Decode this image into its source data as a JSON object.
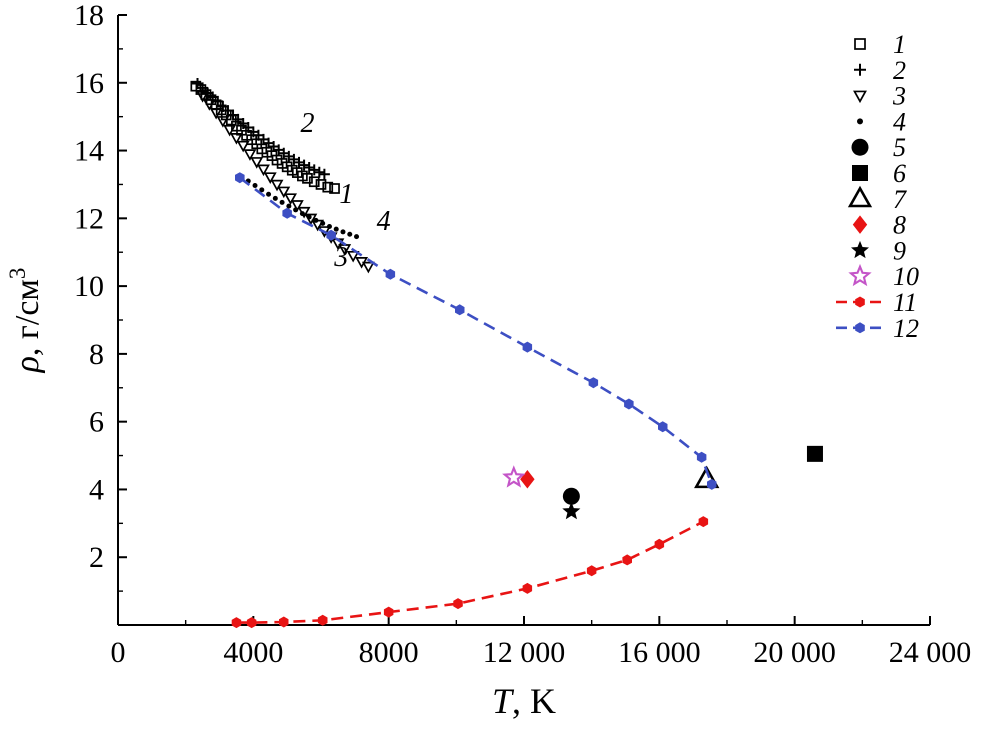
{
  "chart_data": {
    "type": "scatter",
    "title": "",
    "xlabel": "T, K",
    "ylabel": "ρ, г/см³",
    "xlabel_parts": {
      "sym": "T",
      "rest": ", K"
    },
    "ylabel_parts": {
      "sym": "ρ",
      "rest": ", г/см",
      "sup": "3"
    },
    "xlim": [
      0,
      24000
    ],
    "ylim": [
      0,
      18
    ],
    "xticks": [
      0,
      4000,
      8000,
      12000,
      16000,
      20000,
      24000
    ],
    "xtick_labels": [
      "0",
      "4000",
      "8000",
      "12 000",
      "16 000",
      "20 000",
      "24 000"
    ],
    "xminor_step": 2000,
    "yticks": [
      2,
      4,
      6,
      8,
      10,
      12,
      14,
      16,
      18
    ],
    "ytick_labels": [
      "2",
      "4",
      "6",
      "8",
      "10",
      "12",
      "14",
      "16",
      "18"
    ],
    "yminor_step": 1,
    "grid": false,
    "legend_position": "top-right",
    "colors": {
      "black": "#000000",
      "red": "#e81414",
      "blue": "#3d4fc3",
      "magenta": "#c455c8"
    },
    "series": [
      {
        "id": "1",
        "marker": "square-open",
        "color": "#000000",
        "size": 9,
        "points": [
          [
            2300,
            15.9
          ],
          [
            2450,
            15.8
          ],
          [
            2600,
            15.65
          ],
          [
            2750,
            15.5
          ],
          [
            2900,
            15.35
          ],
          [
            3050,
            15.2
          ],
          [
            3200,
            15.05
          ],
          [
            3350,
            14.9
          ],
          [
            3500,
            14.72
          ],
          [
            3650,
            14.6
          ],
          [
            3800,
            14.45
          ],
          [
            3950,
            14.32
          ],
          [
            4100,
            14.2
          ],
          [
            4250,
            14.05
          ],
          [
            4400,
            13.95
          ],
          [
            4550,
            13.85
          ],
          [
            4700,
            13.72
          ],
          [
            4850,
            13.62
          ],
          [
            5000,
            13.52
          ],
          [
            5150,
            13.42
          ],
          [
            5300,
            13.35
          ],
          [
            5450,
            13.25
          ],
          [
            5600,
            13.18
          ],
          [
            5800,
            13.08
          ],
          [
            6000,
            13.0
          ],
          [
            6200,
            12.92
          ],
          [
            6400,
            12.88
          ]
        ]
      },
      {
        "id": "2",
        "marker": "plus",
        "color": "#000000",
        "size": 11,
        "points": [
          [
            2350,
            15.98
          ],
          [
            2500,
            15.85
          ],
          [
            2650,
            15.7
          ],
          [
            2800,
            15.58
          ],
          [
            2950,
            15.45
          ],
          [
            3100,
            15.3
          ],
          [
            3250,
            15.18
          ],
          [
            3400,
            15.05
          ],
          [
            3550,
            14.92
          ],
          [
            3700,
            14.8
          ],
          [
            3850,
            14.68
          ],
          [
            4000,
            14.55
          ],
          [
            4150,
            14.45
          ],
          [
            4300,
            14.33
          ],
          [
            4450,
            14.22
          ],
          [
            4600,
            14.12
          ],
          [
            4750,
            14.02
          ],
          [
            4900,
            13.92
          ],
          [
            5050,
            13.83
          ],
          [
            5200,
            13.74
          ],
          [
            5350,
            13.65
          ],
          [
            5500,
            13.57
          ],
          [
            5650,
            13.5
          ],
          [
            5800,
            13.43
          ],
          [
            5950,
            13.36
          ],
          [
            6100,
            13.3
          ]
        ]
      },
      {
        "id": "3",
        "marker": "triangle-down-open",
        "color": "#000000",
        "size": 10,
        "points": [
          [
            2500,
            15.62
          ],
          [
            2700,
            15.38
          ],
          [
            2900,
            15.12
          ],
          [
            3100,
            14.88
          ],
          [
            3300,
            14.62
          ],
          [
            3500,
            14.38
          ],
          [
            3700,
            14.15
          ],
          [
            3900,
            13.9
          ],
          [
            4100,
            13.67
          ],
          [
            4300,
            13.45
          ],
          [
            4500,
            13.22
          ],
          [
            4700,
            13.0
          ],
          [
            4900,
            12.8
          ],
          [
            5100,
            12.6
          ],
          [
            5300,
            12.4
          ],
          [
            5500,
            12.2
          ],
          [
            5700,
            12.0
          ],
          [
            5900,
            11.82
          ],
          [
            6100,
            11.63
          ],
          [
            6300,
            11.45
          ],
          [
            6500,
            11.27
          ],
          [
            6700,
            11.1
          ],
          [
            6950,
            10.9
          ],
          [
            7200,
            10.72
          ],
          [
            7400,
            10.58
          ]
        ]
      },
      {
        "id": "4",
        "marker": "dot",
        "color": "#000000",
        "size": 5,
        "points": [
          [
            3850,
            13.1
          ],
          [
            4050,
            12.97
          ],
          [
            4250,
            12.84
          ],
          [
            4450,
            12.71
          ],
          [
            4650,
            12.59
          ],
          [
            4850,
            12.47
          ],
          [
            5050,
            12.36
          ],
          [
            5250,
            12.25
          ],
          [
            5450,
            12.14
          ],
          [
            5650,
            12.04
          ],
          [
            5850,
            11.94
          ],
          [
            6050,
            11.85
          ],
          [
            6250,
            11.76
          ],
          [
            6450,
            11.68
          ],
          [
            6650,
            11.6
          ],
          [
            6850,
            11.53
          ],
          [
            7050,
            11.46
          ]
        ]
      },
      {
        "id": "5",
        "marker": "circle-filled",
        "color": "#000000",
        "size": 17,
        "points": [
          [
            13400,
            3.8
          ]
        ]
      },
      {
        "id": "6",
        "marker": "square-filled",
        "color": "#000000",
        "size": 16,
        "points": [
          [
            20600,
            5.05
          ]
        ]
      },
      {
        "id": "7",
        "marker": "triangle-up-open",
        "color": "#000000",
        "size": 19,
        "points": [
          [
            17400,
            4.3
          ]
        ]
      },
      {
        "id": "8",
        "marker": "diamond-filled",
        "color": "#e81414",
        "size": 16,
        "points": [
          [
            12100,
            4.3
          ]
        ]
      },
      {
        "id": "9",
        "marker": "star-filled",
        "color": "#000000",
        "size": 19,
        "points": [
          [
            13400,
            3.35
          ]
        ]
      },
      {
        "id": "10",
        "marker": "star-open",
        "color": "#c455c8",
        "size": 19,
        "points": [
          [
            11700,
            4.35
          ]
        ]
      },
      {
        "id": "11",
        "marker": "hexagon",
        "color": "#e81414",
        "size": 11,
        "line": "dashed",
        "points": [
          [
            3500,
            0.07
          ],
          [
            3950,
            0.07
          ],
          [
            4900,
            0.09
          ],
          [
            6050,
            0.14
          ],
          [
            8000,
            0.38
          ],
          [
            10050,
            0.63
          ],
          [
            12100,
            1.08
          ],
          [
            14000,
            1.6
          ],
          [
            15050,
            1.92
          ],
          [
            16000,
            2.38
          ],
          [
            17300,
            3.05
          ]
        ]
      },
      {
        "id": "12",
        "marker": "hexagon",
        "color": "#3d4fc3",
        "size": 11,
        "line": "dashed",
        "points": [
          [
            3600,
            13.2
          ],
          [
            5000,
            12.15
          ],
          [
            6300,
            11.5
          ],
          [
            8050,
            10.35
          ],
          [
            10100,
            9.3
          ],
          [
            12100,
            8.2
          ],
          [
            14050,
            7.15
          ],
          [
            15100,
            6.52
          ],
          [
            16100,
            5.85
          ],
          [
            17250,
            4.95
          ],
          [
            17550,
            4.15
          ]
        ]
      }
    ],
    "annotations": [
      {
        "text": "2",
        "x": 5600,
        "y": 14.55
      },
      {
        "text": "1",
        "x": 6750,
        "y": 12.45
      },
      {
        "text": "4",
        "x": 7850,
        "y": 11.65
      },
      {
        "text": "3",
        "x": 6600,
        "y": 10.6
      }
    ],
    "legend": [
      {
        "label": "1",
        "marker": "square-open",
        "color": "#000000",
        "size": 10,
        "line": false
      },
      {
        "label": "2",
        "marker": "plus",
        "color": "#000000",
        "size": 12,
        "line": false
      },
      {
        "label": "3",
        "marker": "triangle-down-open",
        "color": "#000000",
        "size": 11,
        "line": false
      },
      {
        "label": "4",
        "marker": "dot",
        "color": "#000000",
        "size": 6,
        "line": false
      },
      {
        "label": "5",
        "marker": "circle-filled",
        "color": "#000000",
        "size": 17,
        "line": false
      },
      {
        "label": "6",
        "marker": "square-filled",
        "color": "#000000",
        "size": 16,
        "line": false
      },
      {
        "label": "7",
        "marker": "triangle-up-open",
        "color": "#000000",
        "size": 18,
        "line": false
      },
      {
        "label": "8",
        "marker": "diamond-filled",
        "color": "#e81414",
        "size": 16,
        "line": false
      },
      {
        "label": "9",
        "marker": "star-filled",
        "color": "#000000",
        "size": 19,
        "line": false
      },
      {
        "label": "10",
        "marker": "star-open",
        "color": "#c455c8",
        "size": 19,
        "line": false
      },
      {
        "label": "11",
        "marker": "hexagon",
        "color": "#e81414",
        "size": 11,
        "line": true
      },
      {
        "label": "12",
        "marker": "hexagon",
        "color": "#3d4fc3",
        "size": 11,
        "line": true
      }
    ]
  }
}
